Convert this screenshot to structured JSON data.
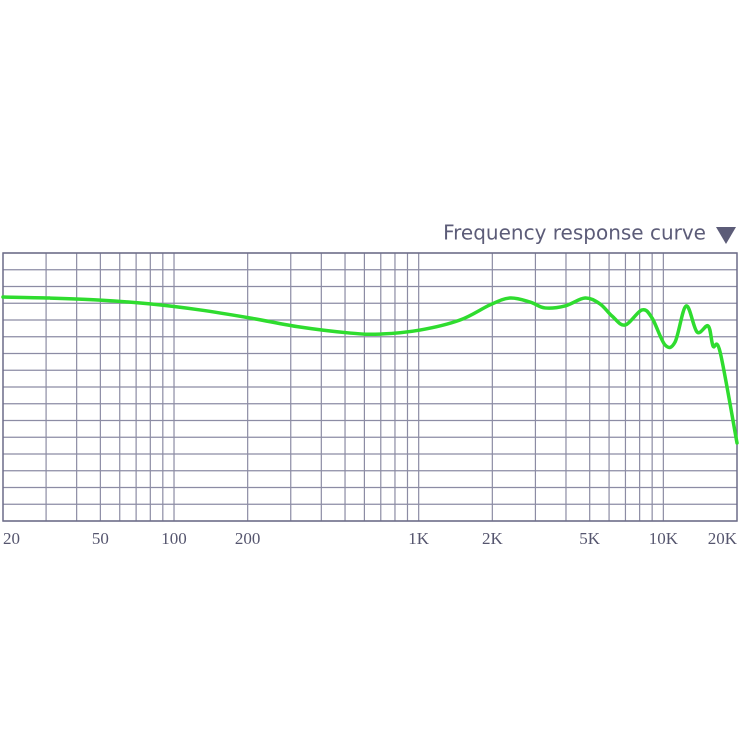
{
  "chart_data": {
    "type": "line",
    "title": "Frequency response curve",
    "x": [
      20,
      31.1,
      49.8,
      79.8,
      127.7,
      204.6,
      327,
      524,
      695,
      1012,
      1476,
      1955,
      2362,
      2853,
      3284,
      3964,
      4787,
      5510,
      6166,
      6970,
      8180,
      8990,
      10160,
      11170,
      12390,
      13740,
      15250,
      15960,
      17060,
      20000
    ],
    "series": [
      {
        "name": "Frequency response curve",
        "color": "#2fdc2f",
        "values": [
          13.37,
          13.31,
          13.19,
          12.96,
          12.6,
          12.12,
          11.58,
          11.22,
          11.16,
          11.4,
          12.0,
          12.9,
          13.31,
          13.07,
          12.72,
          12.84,
          13.31,
          12.96,
          12.24,
          11.7,
          12.6,
          12.12,
          10.51,
          10.69,
          12.84,
          11.28,
          11.64,
          10.45,
          10.09,
          4.66
        ]
      }
    ],
    "log_x": true,
    "xlim": [
      20,
      20000
    ],
    "xticks": [
      20,
      50,
      100,
      200,
      {
        "value": 1000,
        "label": "1K"
      },
      {
        "value": 2000,
        "label": "2K"
      },
      {
        "value": 5000,
        "label": "5K"
      },
      {
        "value": 10000,
        "label": "10K"
      },
      {
        "value": 20000,
        "label": "20K"
      }
    ],
    "x_grid": [
      30,
      40,
      50,
      60,
      70,
      80,
      90,
      100,
      200,
      300,
      400,
      500,
      600,
      700,
      800,
      900,
      1000,
      2000,
      3000,
      4000,
      5000,
      6000,
      7000,
      8000,
      9000,
      10000
    ],
    "ylim": [
      0,
      16
    ],
    "yticks": [
      0,
      1,
      2,
      3,
      4,
      5,
      6,
      7,
      8,
      9,
      10,
      11,
      12,
      13,
      14,
      15,
      16
    ],
    "grid": true
  }
}
